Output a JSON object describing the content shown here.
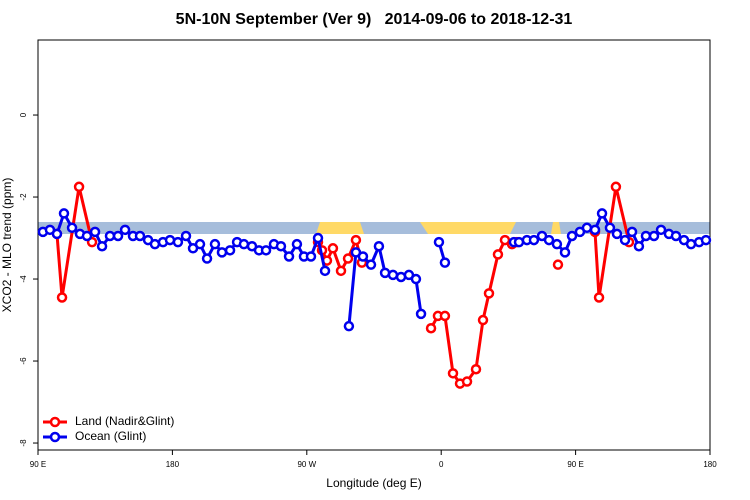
{
  "chart_data": {
    "type": "line",
    "title": "5N-10N September (Ver 9)   2014-09-06 to 2018-12-31",
    "x_label": "Longitude (deg E)",
    "y_label": "XCO2 - MLO trend (ppm)",
    "xlim": [
      90,
      540
    ],
    "xticks": [
      {
        "value": 90,
        "label": "90 E"
      },
      180,
      {
        "value": 270,
        "label": "90 W"
      },
      {
        "value": 360,
        "label": "0"
      },
      {
        "value": 450,
        "label": "90 E"
      },
      {
        "value": 540,
        "label": "180"
      }
    ],
    "ylim": [
      -8.17,
      1.83
    ],
    "yticks": [
      -8,
      -6,
      -4,
      -2,
      0
    ],
    "legend": "bottom-left",
    "series": [
      {
        "name": "Land (Nadir&Glint)",
        "color": "#ff0000",
        "x": [
          102.7,
          106.1,
          117.5,
          126.2,
          null,
          277.5,
          280.2,
          283.5,
          287.5,
          292.9,
          297.6,
          302.9,
          306.9,
          null,
          353.2,
          357.8,
          362.5,
          367.9,
          372.6,
          377.3,
          383.3,
          388,
          392,
          398,
          402.7,
          407.4,
          410.7,
          null,
          438.2,
          null,
          463,
          465.7,
          477,
          485.8
        ],
        "values": [
          -2.9,
          -4.45,
          -1.75,
          -3.1,
          null,
          -3.1,
          -3.3,
          -3.55,
          -3.25,
          -3.8,
          -3.5,
          -3.05,
          -3.6,
          null,
          -5.2,
          -4.9,
          -4.9,
          -6.3,
          -6.55,
          -6.5,
          -6.2,
          -5.0,
          -4.35,
          -3.4,
          -3.05,
          -3.15,
          -3.1,
          null,
          -3.65,
          null,
          -2.85,
          -4.45,
          -1.75,
          -3.1
        ]
      },
      {
        "name": "Ocean (Glint)",
        "color": "#0000ee",
        "x": [
          93.3,
          98,
          102.7,
          107.4,
          112.8,
          118.1,
          122.8,
          128.2,
          132.9,
          138.2,
          143.6,
          148.3,
          153.6,
          158.3,
          163.7,
          168.3,
          173.7,
          178.4,
          183.7,
          189.1,
          193.8,
          198.5,
          203.2,
          208.5,
          213.2,
          218.6,
          223.3,
          227.9,
          233.3,
          238,
          242.7,
          248,
          252.7,
          258.1,
          263.4,
          268.1,
          272.8,
          277.5,
          282.2,
          null,
          298.2,
          302.9,
          307.6,
          313,
          318.3,
          322.4,
          327.7,
          333.1,
          338.4,
          343.1,
          346.5,
          null,
          358.5,
          362.5,
          null,
          408.7,
          412.1,
          417.4,
          422.1,
          427.5,
          432.2,
          437.5,
          442.9,
          447.6,
          452.9,
          457.6,
          463,
          467.7,
          473,
          477.7,
          483.1,
          487.8,
          492.4,
          497.1,
          502.5,
          507.2,
          512.5,
          517.2,
          522.6,
          527.3,
          532.7,
          537.3
        ],
        "values": [
          -2.85,
          -2.8,
          -2.9,
          -2.4,
          -2.75,
          -2.9,
          -2.95,
          -2.85,
          -3.2,
          -2.95,
          -2.95,
          -2.8,
          -2.95,
          -2.95,
          -3.05,
          -3.15,
          -3.1,
          -3.05,
          -3.1,
          -2.95,
          -3.25,
          -3.15,
          -3.5,
          -3.15,
          -3.35,
          -3.3,
          -3.1,
          -3.15,
          -3.2,
          -3.3,
          -3.3,
          -3.15,
          -3.2,
          -3.45,
          -3.15,
          -3.45,
          -3.45,
          -3.0,
          -3.8,
          null,
          -5.15,
          -3.35,
          -3.45,
          -3.65,
          -3.2,
          -3.85,
          -3.9,
          -3.95,
          -3.9,
          -4.0,
          -4.85,
          null,
          -3.1,
          -3.6,
          null,
          -3.1,
          -3.1,
          -3.05,
          -3.05,
          -2.95,
          -3.05,
          -3.15,
          -3.35,
          -2.95,
          -2.85,
          -2.75,
          -2.8,
          -2.4,
          -2.75,
          -2.9,
          -3.05,
          -2.85,
          -3.2,
          -2.95,
          -2.95,
          -2.8,
          -2.9,
          -2.95,
          -3.05,
          -3.15,
          -3.1,
          -3.05
        ]
      }
    ]
  }
}
